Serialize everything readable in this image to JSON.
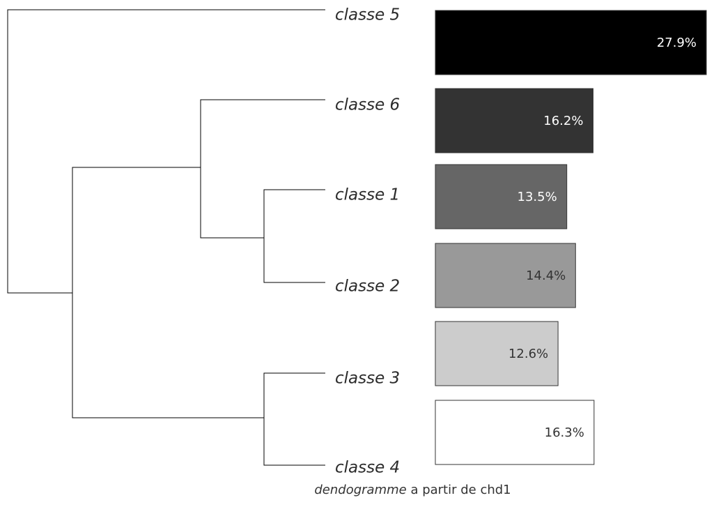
{
  "chart_data": {
    "type": "dendrogram",
    "leaves_top_to_bottom": [
      "classe 5",
      "classe 6",
      "classe 1",
      "classe 2",
      "classe 3",
      "classe 4"
    ],
    "merges": [
      {
        "left": "classe 1",
        "right": "classe 2"
      },
      {
        "left": "classe 6",
        "right": "classe 1+classe 2"
      },
      {
        "left": "classe 3",
        "right": "classe 4"
      },
      {
        "left": "classe 6+classe 1+classe 2",
        "right": "classe 3+classe 4"
      },
      {
        "left": "classe 5",
        "right": "rest"
      }
    ],
    "bars": [
      {
        "label": "classe 5",
        "value": 27.9,
        "value_text": "27.9%",
        "fill": "#000000",
        "text_color": "#ffffff"
      },
      {
        "label": "classe 6",
        "value": 16.2,
        "value_text": "16.2%",
        "fill": "#333333",
        "text_color": "#ffffff"
      },
      {
        "label": "classe 1",
        "value": 13.5,
        "value_text": "13.5%",
        "fill": "#666666",
        "text_color": "#ffffff"
      },
      {
        "label": "classe 2",
        "value": 14.4,
        "value_text": "14.4%",
        "fill": "#999999",
        "text_color": "#333333"
      },
      {
        "label": "classe 3",
        "value": 12.6,
        "value_text": "12.6%",
        "fill": "#cccccc",
        "text_color": "#333333"
      },
      {
        "label": "classe 4",
        "value": 16.3,
        "value_text": "16.3%",
        "fill": "#ffffff",
        "text_color": "#333333"
      }
    ]
  },
  "caption": {
    "italic": "dendogramme",
    "rest": " a partir de chd1"
  }
}
